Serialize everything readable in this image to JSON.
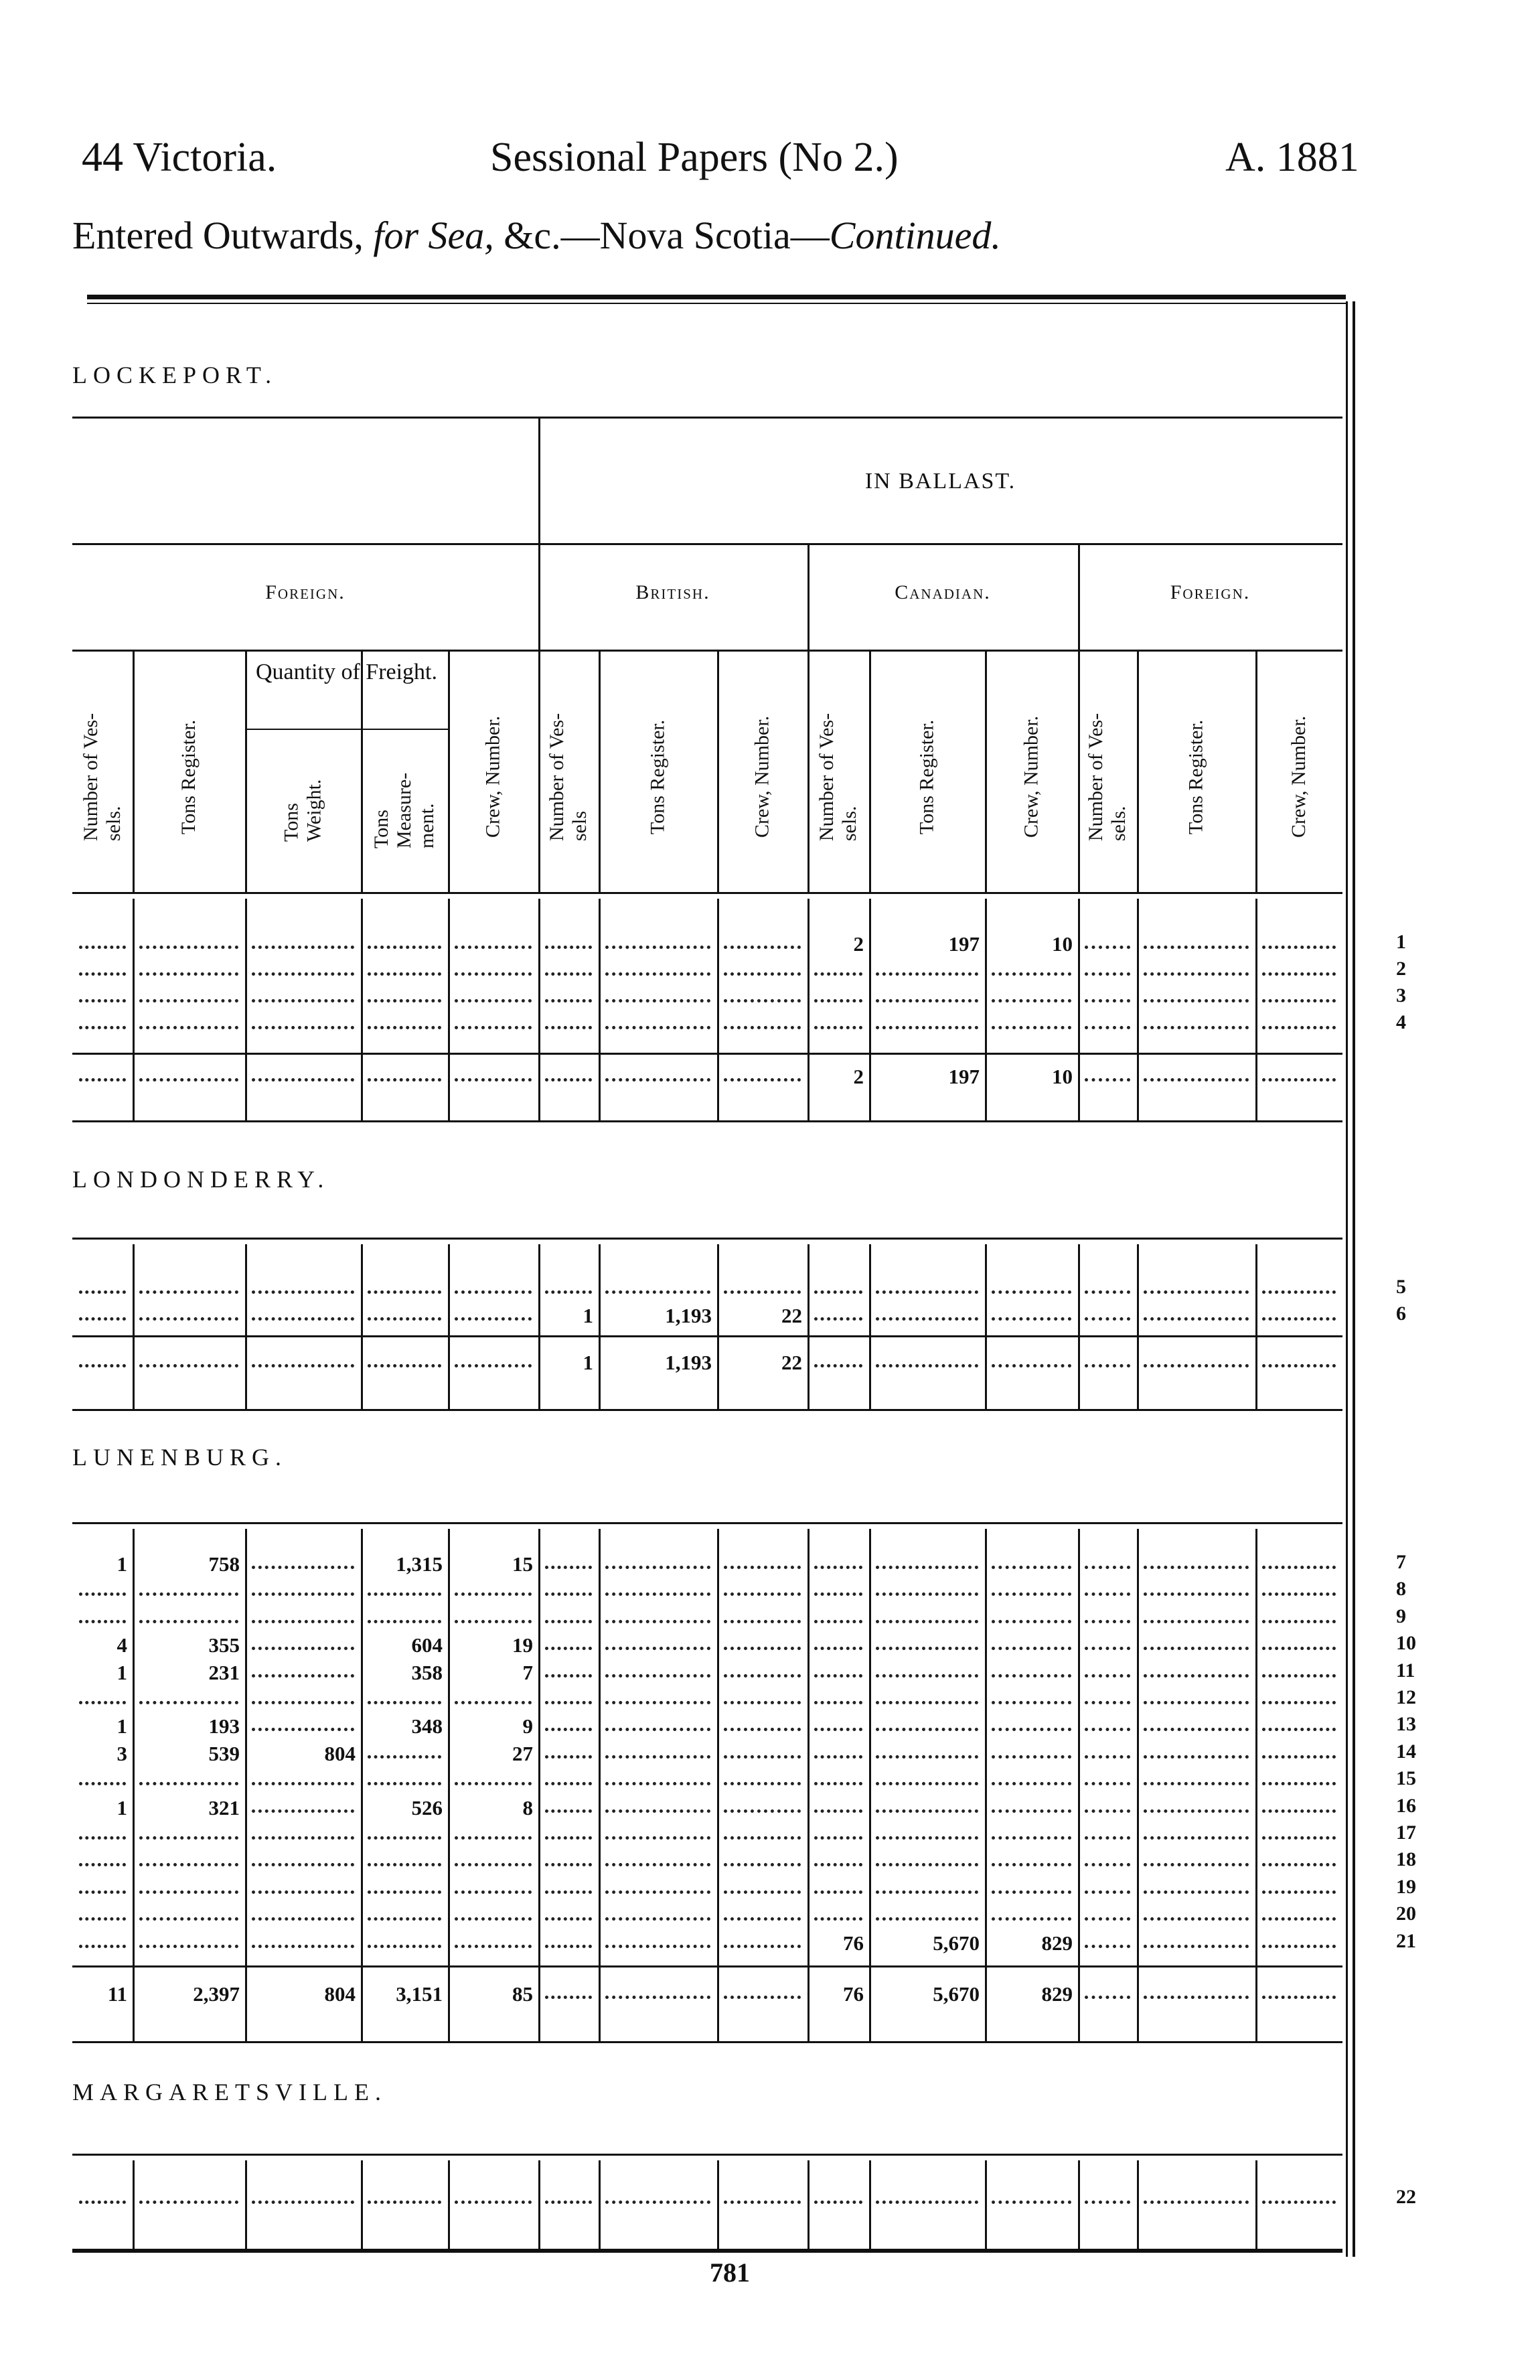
{
  "header": {
    "left": "44 Victoria.",
    "center": "Sessional Papers (No 2.)",
    "right": "A. 1881"
  },
  "subtitle": {
    "part1": "Entered Outwards, ",
    "for": "for",
    "sea": "Sea,",
    "part2": " &c.—Nova Scotia—",
    "continued": "Continued."
  },
  "table": {
    "in_ballast_label": "IN BALLAST.",
    "groups": [
      "Foreign.",
      "British.",
      "Canadian.",
      "Foreign."
    ],
    "quantity_of_freight": "Quantity of Freight.",
    "columns": [
      "Number of Ves-\nsels.",
      "Tons Register.",
      "Tons\nWeight.",
      "Tons\nMeasure-\nment.",
      "Crew, Number.",
      "Number of Ves-\nsels",
      "Tons Register.",
      "Crew, Number.",
      "Number of Ves-\nsels.",
      "Tons Register.",
      "Crew, Number.",
      "Number of Ves-\nsels.",
      "Tons Register.",
      "Crew, Number."
    ]
  },
  "sections": [
    {
      "name": "LOCKEPORT.",
      "rows": [
        {
          "num": "1",
          "cells": [
            "",
            "",
            "",
            "",
            "",
            "",
            "",
            "",
            "2",
            "197",
            "10",
            "",
            "",
            ""
          ]
        },
        {
          "num": "2",
          "cells": [
            "",
            "",
            "",
            "",
            "",
            "",
            "",
            "",
            "",
            "",
            "",
            "",
            "",
            ""
          ]
        },
        {
          "num": "3",
          "cells": [
            "",
            "",
            "",
            "",
            "",
            "",
            "",
            "",
            "",
            "",
            "",
            "",
            "",
            ""
          ]
        },
        {
          "num": "4",
          "cells": [
            "",
            "",
            "",
            "",
            "",
            "",
            "",
            "",
            "",
            "",
            "",
            "",
            "",
            ""
          ]
        }
      ],
      "total": [
        "",
        "",
        "",
        "",
        "",
        "",
        "",
        "",
        "2",
        "197",
        "10",
        "",
        "",
        ""
      ]
    },
    {
      "name": "LONDONDERRY.",
      "rows": [
        {
          "num": "5",
          "cells": [
            "",
            "",
            "",
            "",
            "",
            "",
            "",
            "",
            "",
            "",
            "",
            "",
            "",
            ""
          ]
        },
        {
          "num": "6",
          "cells": [
            "",
            "",
            "",
            "",
            "",
            "1",
            "1,193",
            "22",
            "",
            "",
            "",
            "",
            "",
            ""
          ]
        }
      ],
      "total": [
        "",
        "",
        "",
        "",
        "",
        "1",
        "1,193",
        "22",
        "",
        "",
        "",
        "",
        "",
        ""
      ]
    },
    {
      "name": "LUNENBURG.",
      "rows": [
        {
          "num": "7",
          "cells": [
            "1",
            "758",
            "",
            "1,315",
            "15",
            "",
            "",
            "",
            "",
            "",
            "",
            "",
            "",
            ""
          ]
        },
        {
          "num": "8",
          "cells": [
            "",
            "",
            "",
            "",
            "",
            "",
            "",
            "",
            "",
            "",
            "",
            "",
            "",
            ""
          ]
        },
        {
          "num": "9",
          "cells": [
            "",
            "",
            "",
            "",
            "",
            "",
            "",
            "",
            "",
            "",
            "",
            "",
            "",
            ""
          ]
        },
        {
          "num": "10",
          "cells": [
            "4",
            "355",
            "",
            "604",
            "19",
            "",
            "",
            "",
            "",
            "",
            "",
            "",
            "",
            ""
          ]
        },
        {
          "num": "11",
          "cells": [
            "1",
            "231",
            "",
            "358",
            "7",
            "",
            "",
            "",
            "",
            "",
            "",
            "",
            "",
            ""
          ]
        },
        {
          "num": "12",
          "cells": [
            "",
            "",
            "",
            "",
            "",
            "",
            "",
            "",
            "",
            "",
            "",
            "",
            "",
            ""
          ]
        },
        {
          "num": "13",
          "cells": [
            "1",
            "193",
            "",
            "348",
            "9",
            "",
            "",
            "",
            "",
            "",
            "",
            "",
            "",
            ""
          ]
        },
        {
          "num": "14",
          "cells": [
            "3",
            "539",
            "804",
            "",
            "27",
            "",
            "",
            "",
            "",
            "",
            "",
            "",
            "",
            ""
          ]
        },
        {
          "num": "15",
          "cells": [
            "",
            "",
            "",
            "",
            "",
            "",
            "",
            "",
            "",
            "",
            "",
            "",
            "",
            ""
          ]
        },
        {
          "num": "16",
          "cells": [
            "1",
            "321",
            "",
            "526",
            "8",
            "",
            "",
            "",
            "",
            "",
            "",
            "",
            "",
            ""
          ]
        },
        {
          "num": "17",
          "cells": [
            "",
            "",
            "",
            "",
            "",
            "",
            "",
            "",
            "",
            "",
            "",
            "",
            "",
            ""
          ]
        },
        {
          "num": "18",
          "cells": [
            "",
            "",
            "",
            "",
            "",
            "",
            "",
            "",
            "",
            "",
            "",
            "",
            "",
            ""
          ]
        },
        {
          "num": "19",
          "cells": [
            "",
            "",
            "",
            "",
            "",
            "",
            "",
            "",
            "",
            "",
            "",
            "",
            "",
            ""
          ]
        },
        {
          "num": "20",
          "cells": [
            "",
            "",
            "",
            "",
            "",
            "",
            "",
            "",
            "",
            "",
            "",
            "",
            "",
            ""
          ]
        },
        {
          "num": "21",
          "cells": [
            "",
            "",
            "",
            "",
            "",
            "",
            "",
            "",
            "76",
            "5,670",
            "829",
            "",
            "",
            ""
          ]
        }
      ],
      "total": [
        "11",
        "2,397",
        "804",
        "3,151",
        "85",
        "",
        "",
        "",
        "76",
        "5,670",
        "829",
        "",
        "",
        ""
      ]
    },
    {
      "name": "MARGARETSVILLE.",
      "rows": [
        {
          "num": "22",
          "cells": [
            "",
            "",
            "",
            "",
            "",
            "",
            "",
            "",
            "",
            "",
            "",
            "",
            "",
            ""
          ]
        }
      ]
    }
  ],
  "page_number": "781"
}
